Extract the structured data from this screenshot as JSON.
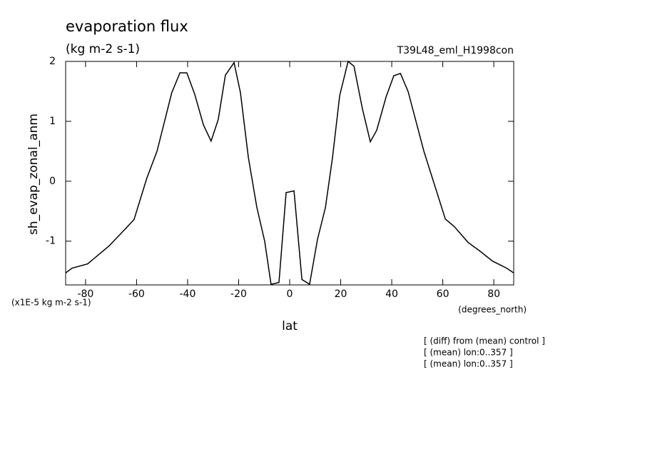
{
  "chart_data": {
    "type": "line",
    "title": "evaporation flux",
    "units": "(kg m-2 s-1)",
    "dataset": "T39L48_eml_H1998con",
    "y_label": "sh_evap_zonal_anm",
    "y_scale_note": "(x1E-5 kg m-2 s-1)",
    "x_label": "lat",
    "x_units": "(degrees_north)",
    "notes": [
      "[ (diff) from (mean) control ]",
      "[ (mean) lon:0..357 ]",
      "[ (mean) lon:0..357 ]"
    ],
    "x": [
      -87.8,
      -85.3,
      -79.2,
      -70.8,
      -64.3,
      -61,
      -56,
      -52,
      -46.2,
      -43,
      -40.3,
      -37.2,
      -33.8,
      -30.8,
      -28,
      -25.2,
      -21.8,
      -19.3,
      -16.2,
      -12.9,
      -9.8,
      -7.3,
      -4.2,
      -1.4,
      1.7,
      4.8,
      7.8,
      10.9,
      14,
      16.8,
      19.6,
      22.9,
      25.2,
      28.5,
      31.6,
      34.1,
      37.8,
      40.8,
      43.4,
      46.4,
      52.6,
      61,
      64.6,
      69.9,
      74.7,
      79.4,
      85,
      87.8
    ],
    "series": [
      {
        "color": "#000000",
        "values": [
          -1.53,
          -1.45,
          -1.38,
          -1.08,
          -0.79,
          -0.64,
          0.05,
          0.5,
          1.48,
          1.81,
          1.81,
          1.45,
          0.94,
          0.67,
          1.03,
          1.77,
          1.98,
          1.48,
          0.4,
          -0.43,
          -1.0,
          -1.72,
          -1.69,
          -0.19,
          -0.16,
          -1.64,
          -1.72,
          -0.97,
          -0.44,
          0.4,
          1.43,
          2.0,
          1.92,
          1.21,
          0.66,
          0.85,
          1.41,
          1.76,
          1.8,
          1.5,
          0.5,
          -0.63,
          -0.76,
          -1.02,
          -1.17,
          -1.33,
          -1.45,
          -1.53
        ]
      }
    ],
    "xlim": [
      -87.8,
      87.8
    ],
    "ylim": [
      -1.73,
      2
    ],
    "xticks": [
      -80,
      -60,
      -40,
      -20,
      0,
      20,
      40,
      60,
      80
    ],
    "yticks": [
      -1,
      0,
      1,
      2
    ]
  }
}
